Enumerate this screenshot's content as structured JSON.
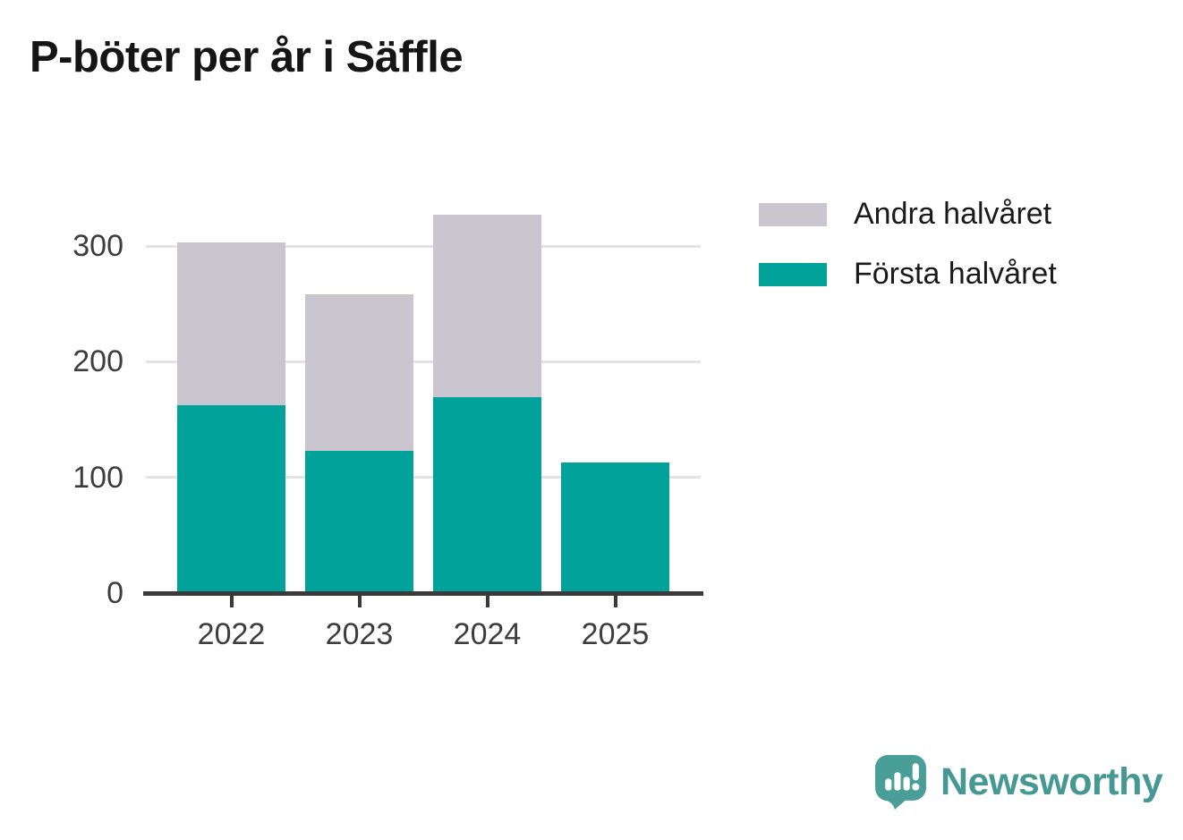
{
  "title": "P-böter per år i Säffle",
  "chart_data": {
    "type": "bar",
    "stacked": true,
    "title": "P-böter per år i Säffle",
    "categories": [
      "2022",
      "2023",
      "2024",
      "2025"
    ],
    "series": [
      {
        "name": "Första halvåret",
        "color": "#00a299",
        "values": [
          162,
          123,
          169,
          113
        ]
      },
      {
        "name": "Andra halvåret",
        "color": "#c9c6cf",
        "values": [
          141,
          135,
          158,
          0
        ]
      }
    ],
    "totals": [
      303,
      258,
      327,
      113
    ],
    "xlabel": "",
    "ylabel": "",
    "y_ticks": [
      0,
      100,
      200,
      300
    ],
    "ylim": [
      0,
      340
    ],
    "grid": "horizontal",
    "legend_position": "top-right",
    "legend_order": [
      "Andra halvåret",
      "Första halvåret"
    ]
  },
  "legend": {
    "items": [
      {
        "label": "Andra halvåret",
        "color": "#c9c6cf"
      },
      {
        "label": "Första halvåret",
        "color": "#00a299"
      }
    ]
  },
  "branding": {
    "name": "Newsworthy"
  },
  "colors": {
    "first_half": "#00a299",
    "second_half": "#c9c6cf",
    "grid": "#e3e3e3",
    "axis": "#3a3a3a",
    "tick_text": "#3d3d3d",
    "title_text": "#151515",
    "legend_text": "#1a1a1a",
    "logo_mark": "#4a9e98",
    "logo_text": "#459992",
    "background": "#ffffff"
  }
}
